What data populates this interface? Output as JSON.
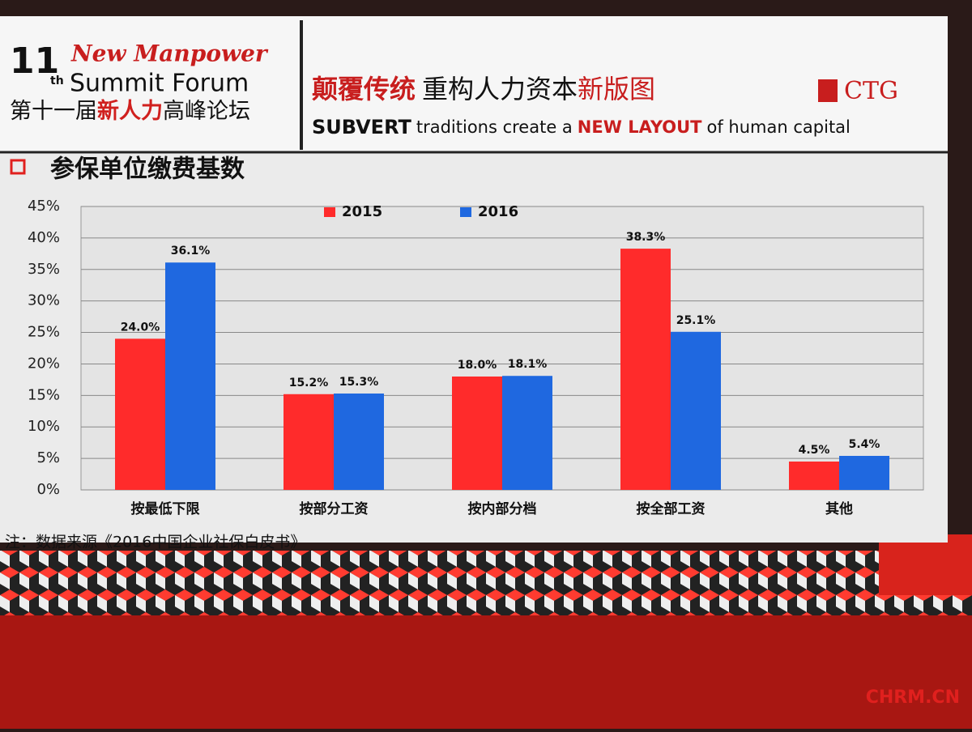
{
  "header": {
    "edition": "11",
    "edition_suffix": "th",
    "forum_en_1": "New Manpower",
    "forum_en_2": "Summit Forum",
    "forum_cn_1": "第十一届",
    "forum_cn_2": "新人力",
    "forum_cn_3": "高峰论坛",
    "slogan_cn_1": "颠覆传统",
    "slogan_cn_2": "重构人力资本",
    "slogan_cn_3": "新版图",
    "slogan_en_1": "SUBVERT",
    "slogan_en_2": "traditions create a",
    "slogan_en_3": "NEW LAYOUT",
    "slogan_en_4": "of human capital",
    "logo": "CTG"
  },
  "footnote": "注：数据来源《2016中国企业社保白皮书》",
  "watermark": "CHRM.CN",
  "chart_data": {
    "type": "bar",
    "title": "参保单位缴费基数",
    "categories": [
      "按最低下限",
      "按部分工资",
      "按内部分档",
      "按全部工资",
      "其他"
    ],
    "series": [
      {
        "name": "2015",
        "color": "#ff2b2b",
        "values": [
          24.0,
          15.2,
          18.0,
          38.3,
          4.5
        ],
        "value_labels": [
          "24.0%",
          "15.2%",
          "18.0%",
          "38.3%",
          "4.5%"
        ]
      },
      {
        "name": "2016",
        "color": "#1f68e0",
        "values": [
          36.1,
          15.3,
          18.1,
          25.1,
          5.4
        ],
        "value_labels": [
          "36.1%",
          "15.3%",
          "18.1%",
          "25.1%",
          "5.4%"
        ]
      }
    ],
    "ylim": [
      0,
      45
    ],
    "yticks": [
      {
        "value": 0,
        "label": "0%"
      },
      {
        "value": 5,
        "label": "5%"
      },
      {
        "value": 10,
        "label": "10%"
      },
      {
        "value": 15,
        "label": "15%"
      },
      {
        "value": 20,
        "label": "20%"
      },
      {
        "value": 25,
        "label": "25%"
      },
      {
        "value": 30,
        "label": "30%"
      },
      {
        "value": 35,
        "label": "35%"
      },
      {
        "value": 40,
        "label": "40%"
      },
      {
        "value": 45,
        "label": "45%"
      }
    ],
    "grid": true,
    "legend": "top"
  }
}
